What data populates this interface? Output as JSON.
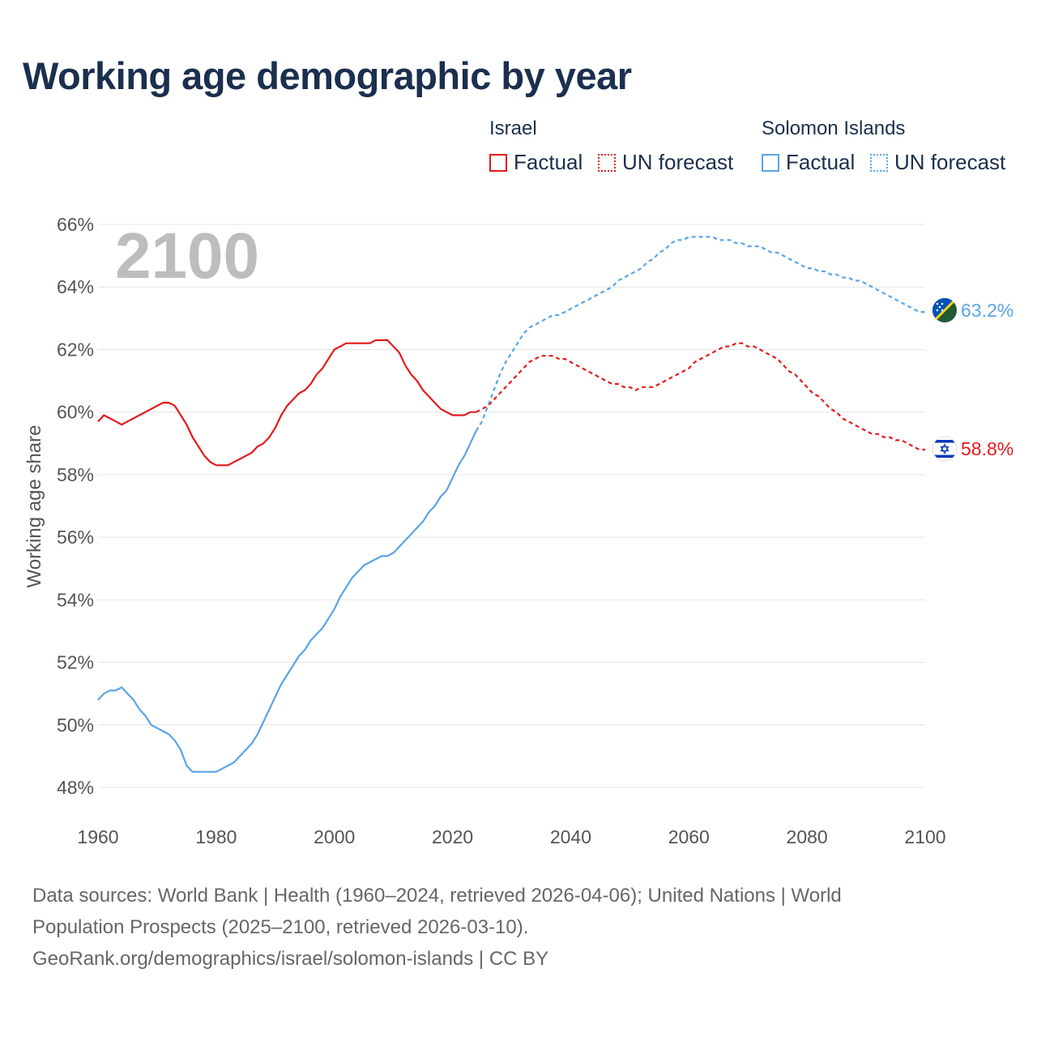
{
  "title": "Working age demographic by year",
  "legend": {
    "groups": [
      {
        "name": "Israel",
        "factual_label": "Factual",
        "forecast_label": "UN forecast",
        "color": "#e41a1c"
      },
      {
        "name": "Solomon Islands",
        "factual_label": "Factual",
        "forecast_label": "UN forecast",
        "color": "#5aa4e6"
      }
    ]
  },
  "year_overlay": "2100",
  "footer": {
    "line1": "Data sources: World Bank | Health (1960–2024, retrieved 2026-04-06); United Nations | World",
    "line2": "Population Prospects (2025–2100, retrieved 2026-03-10).",
    "line3": "GeoRank.org/demographics/israel/solomon-islands | CC BY"
  },
  "chart_data": {
    "type": "line",
    "title": "Working age demographic by year",
    "xlabel": "",
    "ylabel": "Working age share",
    "xlim": [
      1960,
      2100
    ],
    "ylim": [
      48,
      66
    ],
    "x_ticks": [
      1960,
      1980,
      2000,
      2020,
      2040,
      2060,
      2080,
      2100
    ],
    "x_tick_labels": [
      "1960",
      "1980",
      "2000",
      "2020",
      "2040",
      "2060",
      "2080",
      "2100"
    ],
    "y_ticks": [
      48,
      50,
      52,
      54,
      56,
      58,
      60,
      62,
      64,
      66
    ],
    "y_tick_labels": [
      "48%",
      "50%",
      "52%",
      "54%",
      "56%",
      "58%",
      "60%",
      "62%",
      "64%",
      "66%"
    ],
    "grid": true,
    "legend_position": "top-right",
    "series": [
      {
        "name": "Israel",
        "color": "#e41a1c",
        "end_label": "58.8%",
        "flag_icon": "israel-flag-icon",
        "factual": {
          "x": [
            1960,
            1961,
            1962,
            1963,
            1964,
            1965,
            1966,
            1967,
            1968,
            1969,
            1970,
            1971,
            1972,
            1973,
            1974,
            1975,
            1976,
            1977,
            1978,
            1979,
            1980,
            1981,
            1982,
            1983,
            1984,
            1985,
            1986,
            1987,
            1988,
            1989,
            1990,
            1991,
            1992,
            1993,
            1994,
            1995,
            1996,
            1997,
            1998,
            1999,
            2000,
            2001,
            2002,
            2003,
            2004,
            2005,
            2006,
            2007,
            2008,
            2009,
            2010,
            2011,
            2012,
            2013,
            2014,
            2015,
            2016,
            2017,
            2018,
            2019,
            2020,
            2021,
            2022,
            2023,
            2024
          ],
          "y": [
            59.7,
            59.9,
            59.8,
            59.7,
            59.6,
            59.7,
            59.8,
            59.9,
            60.0,
            60.1,
            60.2,
            60.3,
            60.3,
            60.2,
            59.9,
            59.6,
            59.2,
            58.9,
            58.6,
            58.4,
            58.3,
            58.3,
            58.3,
            58.4,
            58.5,
            58.6,
            58.7,
            58.9,
            59.0,
            59.2,
            59.5,
            59.9,
            60.2,
            60.4,
            60.6,
            60.7,
            60.9,
            61.2,
            61.4,
            61.7,
            62.0,
            62.1,
            62.2,
            62.2,
            62.2,
            62.2,
            62.2,
            62.3,
            62.3,
            62.3,
            62.1,
            61.9,
            61.5,
            61.2,
            61.0,
            60.7,
            60.5,
            60.3,
            60.1,
            60.0,
            59.9,
            59.9,
            59.9,
            60.0,
            60.0
          ]
        },
        "forecast": {
          "x": [
            2024,
            2025,
            2026,
            2027,
            2028,
            2029,
            2030,
            2031,
            2032,
            2033,
            2034,
            2035,
            2036,
            2037,
            2038,
            2039,
            2040,
            2041,
            2042,
            2043,
            2044,
            2045,
            2046,
            2047,
            2048,
            2049,
            2050,
            2051,
            2052,
            2053,
            2054,
            2055,
            2056,
            2057,
            2058,
            2059,
            2060,
            2061,
            2062,
            2063,
            2064,
            2065,
            2066,
            2067,
            2068,
            2069,
            2070,
            2071,
            2072,
            2073,
            2074,
            2075,
            2076,
            2077,
            2078,
            2079,
            2080,
            2081,
            2082,
            2083,
            2084,
            2085,
            2086,
            2087,
            2088,
            2089,
            2090,
            2091,
            2092,
            2093,
            2094,
            2095,
            2096,
            2097,
            2098,
            2099,
            2100
          ],
          "y": [
            60.0,
            60.1,
            60.2,
            60.4,
            60.6,
            60.8,
            61.0,
            61.2,
            61.4,
            61.6,
            61.7,
            61.8,
            61.8,
            61.8,
            61.7,
            61.7,
            61.6,
            61.5,
            61.4,
            61.3,
            61.2,
            61.1,
            61.0,
            60.9,
            60.9,
            60.8,
            60.8,
            60.7,
            60.8,
            60.8,
            60.8,
            60.9,
            61.0,
            61.1,
            61.2,
            61.3,
            61.4,
            61.6,
            61.7,
            61.8,
            61.9,
            62.0,
            62.1,
            62.1,
            62.2,
            62.2,
            62.1,
            62.1,
            62.0,
            61.9,
            61.8,
            61.7,
            61.5,
            61.3,
            61.2,
            61.0,
            60.8,
            60.6,
            60.5,
            60.3,
            60.1,
            60.0,
            59.8,
            59.7,
            59.6,
            59.5,
            59.4,
            59.3,
            59.3,
            59.2,
            59.2,
            59.1,
            59.1,
            59.0,
            58.9,
            58.8,
            58.8
          ]
        }
      },
      {
        "name": "Solomon Islands",
        "color": "#5aa4e6",
        "end_label": "63.2%",
        "flag_icon": "solomon-islands-flag-icon",
        "factual": {
          "x": [
            1960,
            1961,
            1962,
            1963,
            1964,
            1965,
            1966,
            1967,
            1968,
            1969,
            1970,
            1971,
            1972,
            1973,
            1974,
            1975,
            1976,
            1977,
            1978,
            1979,
            1980,
            1981,
            1982,
            1983,
            1984,
            1985,
            1986,
            1987,
            1988,
            1989,
            1990,
            1991,
            1992,
            1993,
            1994,
            1995,
            1996,
            1997,
            1998,
            1999,
            2000,
            2001,
            2002,
            2003,
            2004,
            2005,
            2006,
            2007,
            2008,
            2009,
            2010,
            2011,
            2012,
            2013,
            2014,
            2015,
            2016,
            2017,
            2018,
            2019,
            2020,
            2021,
            2022,
            2023,
            2024
          ],
          "y": [
            50.8,
            51.0,
            51.1,
            51.1,
            51.2,
            51.0,
            50.8,
            50.5,
            50.3,
            50.0,
            49.9,
            49.8,
            49.7,
            49.5,
            49.2,
            48.7,
            48.5,
            48.5,
            48.5,
            48.5,
            48.5,
            48.6,
            48.7,
            48.8,
            49.0,
            49.2,
            49.4,
            49.7,
            50.1,
            50.5,
            50.9,
            51.3,
            51.6,
            51.9,
            52.2,
            52.4,
            52.7,
            52.9,
            53.1,
            53.4,
            53.7,
            54.1,
            54.4,
            54.7,
            54.9,
            55.1,
            55.2,
            55.3,
            55.4,
            55.4,
            55.5,
            55.7,
            55.9,
            56.1,
            56.3,
            56.5,
            56.8,
            57.0,
            57.3,
            57.5,
            57.9,
            58.3,
            58.6,
            59.0,
            59.4
          ]
        },
        "forecast": {
          "x": [
            2024,
            2025,
            2026,
            2027,
            2028,
            2029,
            2030,
            2031,
            2032,
            2033,
            2034,
            2035,
            2036,
            2037,
            2038,
            2039,
            2040,
            2041,
            2042,
            2043,
            2044,
            2045,
            2046,
            2047,
            2048,
            2049,
            2050,
            2051,
            2052,
            2053,
            2054,
            2055,
            2056,
            2057,
            2058,
            2059,
            2060,
            2061,
            2062,
            2063,
            2064,
            2065,
            2066,
            2067,
            2068,
            2069,
            2070,
            2071,
            2072,
            2073,
            2074,
            2075,
            2076,
            2077,
            2078,
            2079,
            2080,
            2081,
            2082,
            2083,
            2084,
            2085,
            2086,
            2087,
            2088,
            2089,
            2090,
            2091,
            2092,
            2093,
            2094,
            2095,
            2096,
            2097,
            2098,
            2099,
            2100
          ],
          "y": [
            59.4,
            59.7,
            60.2,
            60.7,
            61.2,
            61.6,
            61.9,
            62.2,
            62.5,
            62.7,
            62.8,
            62.9,
            63.0,
            63.1,
            63.1,
            63.2,
            63.3,
            63.4,
            63.5,
            63.6,
            63.7,
            63.8,
            63.9,
            64.0,
            64.2,
            64.3,
            64.4,
            64.5,
            64.6,
            64.8,
            64.9,
            65.1,
            65.2,
            65.4,
            65.5,
            65.5,
            65.6,
            65.6,
            65.6,
            65.6,
            65.6,
            65.5,
            65.5,
            65.5,
            65.4,
            65.4,
            65.3,
            65.3,
            65.3,
            65.2,
            65.1,
            65.1,
            65.0,
            64.9,
            64.8,
            64.7,
            64.6,
            64.6,
            64.5,
            64.5,
            64.4,
            64.4,
            64.3,
            64.3,
            64.2,
            64.2,
            64.1,
            64.0,
            63.9,
            63.8,
            63.7,
            63.6,
            63.5,
            63.4,
            63.3,
            63.2,
            63.2
          ]
        }
      }
    ]
  }
}
